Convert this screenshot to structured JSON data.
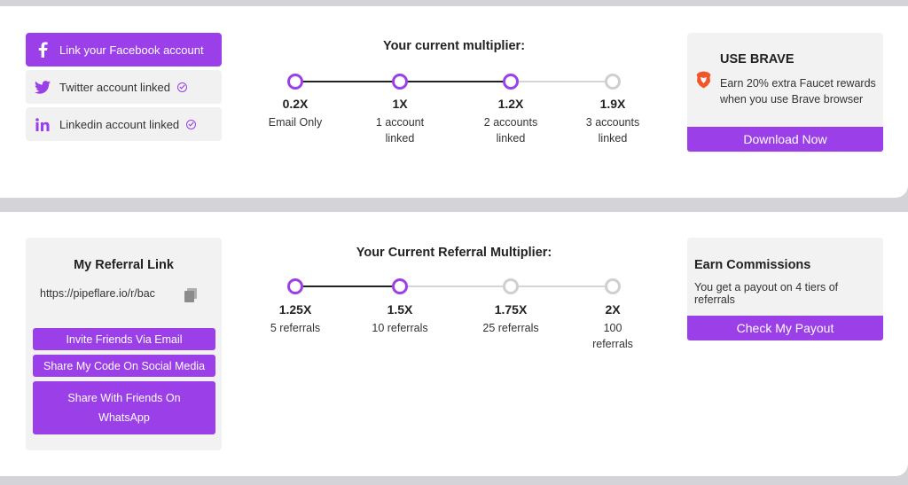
{
  "social": {
    "facebook": {
      "label": "Link your Facebook account",
      "icon": "facebook-icon"
    },
    "twitter": {
      "label": "Twitter account linked",
      "icon": "twitter-icon"
    },
    "linkedin": {
      "label": "Linkedin account linked",
      "icon": "linkedin-icon"
    }
  },
  "multiplier": {
    "title": "Your current multiplier:",
    "progress_steps_reached": 3,
    "steps": [
      {
        "value": "0.2X",
        "label": "Email Only"
      },
      {
        "value": "1X",
        "label": "1 account linked"
      },
      {
        "value": "1.2X",
        "label": "2 accounts linked"
      },
      {
        "value": "1.9X",
        "label": "3 accounts linked"
      }
    ]
  },
  "brave": {
    "title": "USE BRAVE",
    "description": "Earn 20% extra Faucet rewards when you use Brave browser",
    "button": "Download Now"
  },
  "referral": {
    "title": "My Referral Link",
    "link": "https://pipeflare.io/r/bac",
    "buttons": {
      "email": "Invite Friends Via Email",
      "social": "Share My Code On Social Media",
      "whatsapp": "Share With Friends On WhatsApp"
    }
  },
  "referral_multiplier": {
    "title": "Your Current Referral Multiplier:",
    "progress_steps_reached": 2,
    "steps": [
      {
        "value": "1.25X",
        "label": "5 referrals"
      },
      {
        "value": "1.5X",
        "label": "10 referrals"
      },
      {
        "value": "1.75X",
        "label": "25 referrals"
      },
      {
        "value": "2X",
        "label": "100 referrals"
      }
    ]
  },
  "commissions": {
    "title": "Earn Commissions",
    "description": "You get a payout on 4 tiers of referrals",
    "button": "Check My Payout"
  },
  "colors": {
    "accent": "#9b3fe8",
    "inactive": "#cfcfcf",
    "card": "#f2f2f3"
  }
}
